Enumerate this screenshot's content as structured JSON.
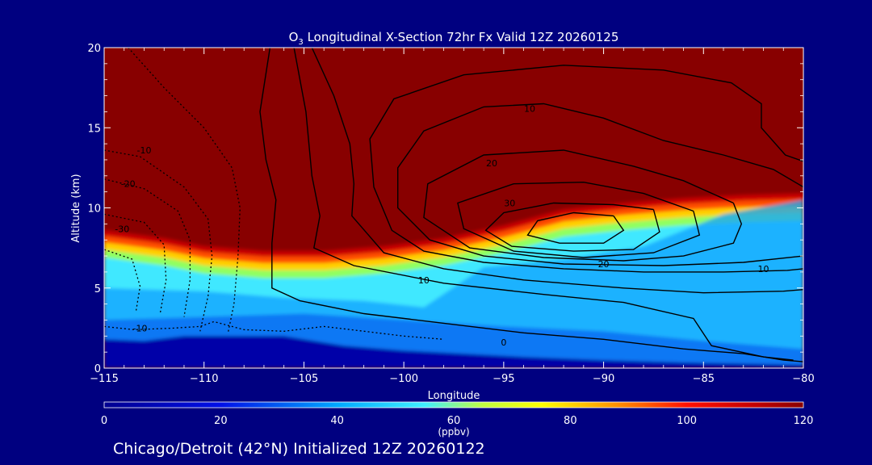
{
  "title_prefix": "O",
  "title_sub": "3",
  "title_rest": " Longitudinal X-Section 72hr  Fx Valid 12Z 20260125",
  "footer_text": "Chicago/Detroit (42°N) Initialized 12Z 20260122",
  "colors": {
    "background": "#000080",
    "axis": "#ffffff",
    "contour": "#000000"
  },
  "chart_data": {
    "type": "heatmap",
    "xlabel": "Longitude",
    "ylabel": "Altitude (km)",
    "xlim": [
      -115,
      -80
    ],
    "ylim": [
      0,
      20
    ],
    "x_ticks": [
      -115,
      -110,
      -105,
      -100,
      -95,
      -90,
      -85,
      -80
    ],
    "x_tick_labels": [
      "−115",
      "−110",
      "−105",
      "−100",
      "−95",
      "−90",
      "−85",
      "−80"
    ],
    "y_ticks": [
      0,
      5,
      10,
      15,
      20
    ],
    "y_tick_labels": [
      "0",
      "5",
      "10",
      "15",
      "20"
    ],
    "colorbar": {
      "label": "(ppbv)",
      "range": [
        0,
        120
      ],
      "ticks": [
        0,
        20,
        40,
        60,
        80,
        100,
        120
      ],
      "tick_labels": [
        "0",
        "20",
        "40",
        "60",
        "80",
        "100",
        "120"
      ],
      "stops": [
        {
          "v": 0,
          "c": "#000090"
        },
        {
          "v": 20,
          "c": "#0010e8"
        },
        {
          "v": 40,
          "c": "#00a8ff"
        },
        {
          "v": 55,
          "c": "#40f0ff"
        },
        {
          "v": 65,
          "c": "#c0ff40"
        },
        {
          "v": 75,
          "c": "#ffff00"
        },
        {
          "v": 88,
          "c": "#ff9000"
        },
        {
          "v": 100,
          "c": "#ff1000"
        },
        {
          "v": 112,
          "c": "#c00000"
        },
        {
          "v": 120,
          "c": "#880000"
        }
      ]
    },
    "tropopause_altitude_km": [
      [
        -115,
        8.6
      ],
      [
        -112,
        8.1
      ],
      [
        -110,
        7.6
      ],
      [
        -107,
        7.3
      ],
      [
        -104,
        7.3
      ],
      [
        -101,
        7.6
      ],
      [
        -98,
        8.1
      ],
      [
        -95,
        8.9
      ],
      [
        -92,
        9.9
      ],
      [
        -89,
        10.3
      ],
      [
        -86,
        10.6
      ],
      [
        -83,
        10.8
      ],
      [
        -80,
        10.9
      ]
    ],
    "boundary_layer_top_km": [
      [
        -115,
        1.8
      ],
      [
        -113,
        1.7
      ],
      [
        -111,
        2.0
      ],
      [
        -109,
        2.0
      ],
      [
        -106,
        2.0
      ],
      [
        -103,
        1.4
      ],
      [
        -100,
        1.1
      ],
      [
        -97,
        0.9
      ],
      [
        -94,
        0.7
      ],
      [
        -90,
        0.5
      ],
      [
        -86,
        0.35
      ],
      [
        -82,
        0.25
      ],
      [
        -80,
        0.2
      ]
    ],
    "wind_contours": [
      {
        "level": "0",
        "style": "solid",
        "label_at": [
          -95,
          1.6
        ],
        "points": [
          [
            -106.7,
            20
          ],
          [
            -107.2,
            16
          ],
          [
            -106.9,
            13
          ],
          [
            -106.4,
            10.5
          ],
          [
            -106.6,
            7.8
          ],
          [
            -106.6,
            5
          ],
          [
            -105.2,
            4.2
          ],
          [
            -102,
            3.4
          ],
          [
            -98,
            2.8
          ],
          [
            -94,
            2.2
          ],
          [
            -90,
            1.8
          ],
          [
            -86,
            1.2
          ],
          [
            -83,
            0.9
          ],
          [
            -81,
            0.5
          ],
          [
            -80,
            0.4
          ]
        ]
      },
      {
        "level": "10",
        "style": "solid",
        "label_at": [
          -99,
          5.5
        ],
        "points": [
          [
            -105.5,
            20
          ],
          [
            -104.9,
            16
          ],
          [
            -104.6,
            12
          ],
          [
            -104.2,
            9.5
          ],
          [
            -104.5,
            7.5
          ],
          [
            -102.5,
            6.4
          ],
          [
            -98,
            5.3
          ],
          [
            -93,
            4.6
          ],
          [
            -89,
            4.1
          ],
          [
            -85.5,
            3.1
          ],
          [
            -84.6,
            1.4
          ],
          [
            -82,
            0.7
          ],
          [
            -80.5,
            0.5
          ]
        ]
      },
      {
        "level": "10",
        "style": "solid",
        "label_at": [
          -93.7,
          16.2
        ],
        "points": [
          [
            -104.6,
            20
          ],
          [
            -103.5,
            17
          ],
          [
            -102.7,
            14
          ],
          [
            -102.5,
            11.5
          ],
          [
            -102.6,
            9.5
          ],
          [
            -101,
            7.2
          ],
          [
            -98,
            6.2
          ],
          [
            -94,
            5.5
          ],
          [
            -89,
            5.0
          ],
          [
            -85,
            4.7
          ],
          [
            -81,
            4.8
          ],
          [
            -80,
            4.9
          ]
        ]
      },
      {
        "level": "",
        "style": "solid",
        "label_at": null,
        "points": [
          [
            -80,
            12.9
          ],
          [
            -80.9,
            13.3
          ],
          [
            -82.1,
            15
          ],
          [
            -82.1,
            16.5
          ],
          [
            -83.6,
            17.8
          ],
          [
            -87,
            18.6
          ],
          [
            -92,
            18.9
          ],
          [
            -97,
            18.3
          ],
          [
            -100.5,
            16.8
          ],
          [
            -101.7,
            14.3
          ],
          [
            -101.5,
            11.3
          ],
          [
            -100.6,
            8.6
          ],
          [
            -99,
            7.3
          ],
          [
            -96,
            6.6
          ],
          [
            -92,
            6.2
          ],
          [
            -88,
            6.0
          ],
          [
            -84,
            6.0
          ],
          [
            -80.8,
            6.1
          ],
          [
            -80,
            6.2
          ]
        ]
      },
      {
        "level": "10",
        "style": "solid",
        "label_at": [
          -82,
          6.2
        ],
        "points": [
          [
            -80,
            11.3
          ],
          [
            -81.5,
            12.4
          ],
          [
            -84,
            13.3
          ],
          [
            -87,
            14.2
          ],
          [
            -90,
            15.6
          ],
          [
            -93,
            16.5
          ],
          [
            -96,
            16.3
          ],
          [
            -99,
            14.8
          ],
          [
            -100.3,
            12.5
          ],
          [
            -100.3,
            10
          ],
          [
            -98.7,
            8.0
          ],
          [
            -96,
            7.0
          ],
          [
            -92,
            6.5
          ],
          [
            -87,
            6.4
          ],
          [
            -83,
            6.6
          ],
          [
            -80,
            7.0
          ]
        ]
      },
      {
        "level": "20",
        "style": "solid",
        "label_at": [
          -95.6,
          12.8
        ],
        "points": [
          [
            -83.5,
            10.3
          ],
          [
            -86,
            11.7
          ],
          [
            -88.5,
            12.6
          ],
          [
            -92,
            13.6
          ],
          [
            -96,
            13.3
          ],
          [
            -98.8,
            11.5
          ],
          [
            -99,
            9.4
          ],
          [
            -96.7,
            7.5
          ],
          [
            -93,
            6.9
          ],
          [
            -89,
            6.7
          ],
          [
            -86,
            7.0
          ],
          [
            -83.5,
            7.8
          ],
          [
            -83.1,
            9.0
          ],
          [
            -83.5,
            10.3
          ]
        ]
      },
      {
        "level": "20",
        "style": "solid",
        "label_at": [
          -90,
          6.5
        ],
        "points": [
          [
            -85.5,
            9.8
          ],
          [
            -88,
            10.9
          ],
          [
            -91,
            11.6
          ],
          [
            -94.5,
            11.5
          ],
          [
            -97.3,
            10.3
          ],
          [
            -97,
            8.7
          ],
          [
            -94.5,
            7.3
          ],
          [
            -91,
            6.9
          ],
          [
            -87.5,
            7.2
          ],
          [
            -85.2,
            8.3
          ],
          [
            -85.5,
            9.8
          ]
        ]
      },
      {
        "level": "30",
        "style": "solid",
        "label_at": [
          -94.7,
          10.3
        ],
        "points": [
          [
            -87.5,
            9.9
          ],
          [
            -89.5,
            10.2
          ],
          [
            -92.5,
            10.3
          ],
          [
            -95,
            9.7
          ],
          [
            -95.9,
            8.6
          ],
          [
            -94.6,
            7.6
          ],
          [
            -91.5,
            7.3
          ],
          [
            -88.5,
            7.4
          ],
          [
            -87.2,
            8.5
          ],
          [
            -87.5,
            9.9
          ]
        ]
      },
      {
        "level": "",
        "style": "solid",
        "label_at": null,
        "points": [
          [
            -89.5,
            9.5
          ],
          [
            -91.5,
            9.7
          ],
          [
            -93.3,
            9.2
          ],
          [
            -93.8,
            8.3
          ],
          [
            -92.2,
            7.8
          ],
          [
            -90,
            7.8
          ],
          [
            -89,
            8.6
          ],
          [
            -89.5,
            9.5
          ]
        ]
      },
      {
        "level": "-10",
        "style": "dashed",
        "label_at": [
          -113,
          13.6
        ],
        "points": [
          [
            -113.8,
            20
          ],
          [
            -112,
            17.5
          ],
          [
            -110,
            15
          ],
          [
            -108.6,
            12.5
          ],
          [
            -108.2,
            10
          ],
          [
            -108.3,
            7
          ],
          [
            -108.5,
            4
          ],
          [
            -108.8,
            2.2
          ]
        ]
      },
      {
        "level": "",
        "style": "dashed",
        "label_at": null,
        "points": [
          [
            -115,
            13.6
          ],
          [
            -113.2,
            13.2
          ],
          [
            -111,
            11.3
          ],
          [
            -109.8,
            9.3
          ],
          [
            -109.6,
            7
          ],
          [
            -109.8,
            4.5
          ],
          [
            -110.2,
            2.3
          ]
        ]
      },
      {
        "level": "-20",
        "style": "dashed",
        "label_at": [
          -113.8,
          11.5
        ],
        "points": [
          [
            -115,
            11.8
          ],
          [
            -113,
            11.2
          ],
          [
            -111.3,
            9.8
          ],
          [
            -110.7,
            8
          ],
          [
            -110.7,
            5.5
          ],
          [
            -111,
            3.2
          ]
        ]
      },
      {
        "level": "-30",
        "style": "dashed",
        "label_at": [
          -114.1,
          8.7
        ],
        "points": [
          [
            -115,
            9.6
          ],
          [
            -113,
            9.1
          ],
          [
            -112,
            7.7
          ],
          [
            -111.9,
            5.5
          ],
          [
            -112.2,
            3.4
          ]
        ]
      },
      {
        "level": "",
        "style": "dashed",
        "label_at": null,
        "points": [
          [
            -115,
            7.4
          ],
          [
            -113.6,
            6.8
          ],
          [
            -113.2,
            5.1
          ],
          [
            -113.4,
            3.6
          ]
        ]
      },
      {
        "level": "-10",
        "style": "dashed",
        "label_at": [
          -113.2,
          2.5
        ],
        "points": [
          [
            -115,
            2.6
          ],
          [
            -113.5,
            2.4
          ],
          [
            -111.5,
            2.5
          ],
          [
            -110.2,
            2.6
          ],
          [
            -109.5,
            2.9
          ],
          [
            -108,
            2.4
          ],
          [
            -106,
            2.3
          ],
          [
            -104,
            2.6
          ],
          [
            -102,
            2.3
          ],
          [
            -100,
            2.0
          ],
          [
            -98,
            1.8
          ]
        ]
      }
    ]
  }
}
